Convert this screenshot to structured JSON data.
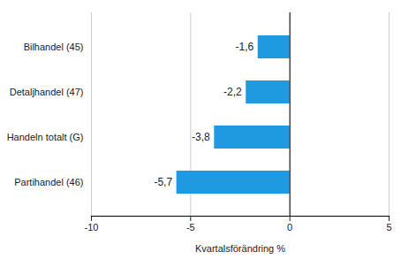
{
  "chart_data": {
    "type": "bar",
    "orientation": "horizontal",
    "categories": [
      "Bilhandel (45)",
      "Detaljhandel (47)",
      "Handeln totalt (G)",
      "Partihandel (46)"
    ],
    "values": [
      -1.6,
      -2.2,
      -3.8,
      -5.7
    ],
    "value_labels": [
      "-1,6",
      "-2,2",
      "-3,8",
      "-5,7"
    ],
    "data_labels": true,
    "color": "#1f9ae0",
    "x_label": "Kvartalsförändring %",
    "xlim": [
      -10,
      5
    ],
    "xticks": [
      -10,
      -5,
      0,
      5
    ],
    "grid": true
  }
}
